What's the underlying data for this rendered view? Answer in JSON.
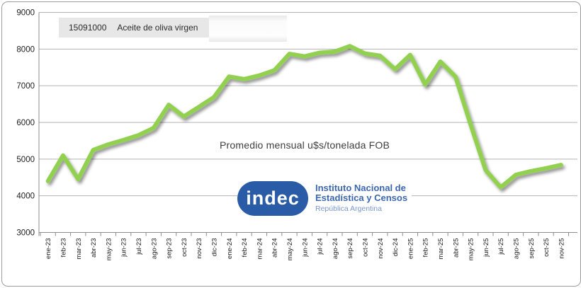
{
  "frame": {
    "background": "#ffffff",
    "border_color": "#9d9d9d"
  },
  "legend": {
    "code": "15091000",
    "label": "Aceite de oliva virgen"
  },
  "title": "Promedio mensual u$s/tonelada FOB",
  "logo": {
    "wordmark": "indec",
    "line1": "Instituto Nacional de",
    "line2": "Estadística y Censos",
    "line3": "República Argentina",
    "pill_color": "#2a5ba7",
    "text_color": "#3b66ae",
    "subtext_color": "#7b97cd"
  },
  "chart_data": {
    "type": "line",
    "title": "Promedio mensual u$s/tonelada FOB",
    "categories": [
      "ene-23",
      "feb-23",
      "mar-23",
      "abr-23",
      "may-23",
      "jun-23",
      "jul-23",
      "ago-23",
      "sep-23",
      "oct-23",
      "nov-23",
      "dic-23",
      "ene-24",
      "feb-24",
      "mar-24",
      "abr-24",
      "may-24",
      "jun-24",
      "jul-24",
      "ago-24",
      "sep-24",
      "oct-24",
      "nov-24",
      "dic-24",
      "ene-25",
      "feb-25",
      "mar-25",
      "abr-25",
      "may-25",
      "jun-25",
      "jul-25",
      "ago-25",
      "sep-25",
      "oct-25",
      "nov-25"
    ],
    "series": [
      {
        "name": "15091000 Aceite de oliva virgen",
        "values": [
          4400,
          5100,
          4450,
          5250,
          5400,
          5520,
          5650,
          5850,
          6480,
          6160,
          6420,
          6690,
          7250,
          7180,
          7280,
          7420,
          7870,
          7800,
          7900,
          7930,
          8080,
          7880,
          7820,
          7450,
          7840,
          7030,
          7660,
          7250,
          5950,
          4700,
          4230,
          4570,
          4670,
          4750,
          4840
        ]
      }
    ],
    "ylim": [
      3000,
      9000
    ],
    "yticks": [
      3000,
      4000,
      5000,
      6000,
      7000,
      8000,
      9000
    ],
    "grid": true,
    "legend_position": "top-left",
    "line_color": "#92d050",
    "grid_color": "#b3b3b3",
    "axis_color": "#8c8c8c",
    "tick_label_color": "#1a1a1a"
  }
}
